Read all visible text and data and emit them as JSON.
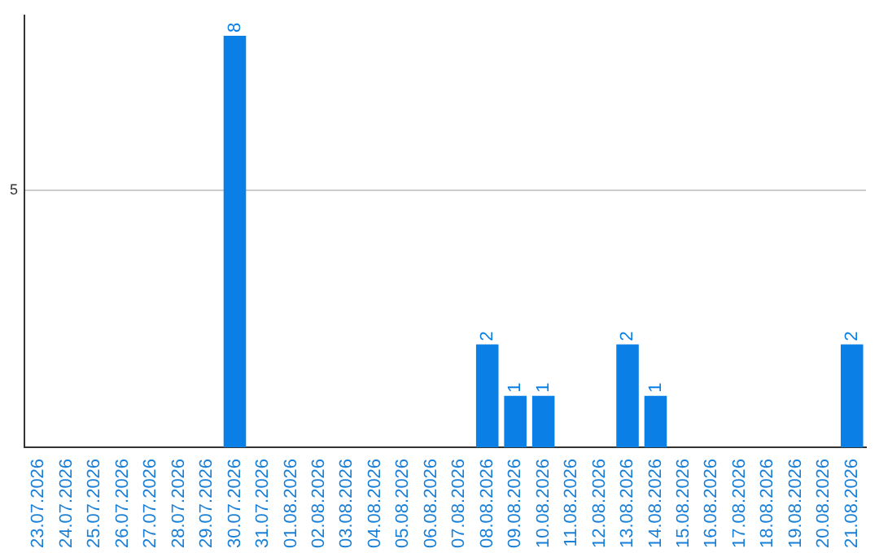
{
  "chart_data": {
    "type": "bar",
    "categories": [
      "23.07.2026",
      "24.07.2026",
      "25.07.2026",
      "26.07.2026",
      "27.07.2026",
      "28.07.2026",
      "29.07.2026",
      "30.07.2026",
      "31.07.2026",
      "01.08.2026",
      "02.08.2026",
      "03.08.2026",
      "04.08.2026",
      "05.08.2026",
      "06.08.2026",
      "07.08.2026",
      "08.08.2026",
      "09.08.2026",
      "10.08.2026",
      "11.08.2026",
      "12.08.2026",
      "13.08.2026",
      "14.08.2026",
      "15.08.2026",
      "16.08.2026",
      "17.08.2026",
      "18.08.2026",
      "19.08.2026",
      "20.08.2026",
      "21.08.2026"
    ],
    "values": [
      0,
      0,
      0,
      0,
      0,
      0,
      0,
      8,
      0,
      0,
      0,
      0,
      0,
      0,
      0,
      0,
      2,
      1,
      1,
      0,
      0,
      2,
      1,
      0,
      0,
      0,
      0,
      0,
      0,
      2
    ],
    "value_labels": [
      null,
      null,
      null,
      null,
      null,
      null,
      null,
      "8",
      null,
      null,
      null,
      null,
      null,
      null,
      null,
      null,
      "2",
      "1",
      "1",
      null,
      null,
      "2",
      "1",
      null,
      null,
      null,
      null,
      null,
      null,
      "2"
    ],
    "color": "#0a7fe6",
    "ylim": [
      0,
      8.4
    ],
    "yticks": [
      5
    ],
    "grid": "y",
    "legend": false
  }
}
